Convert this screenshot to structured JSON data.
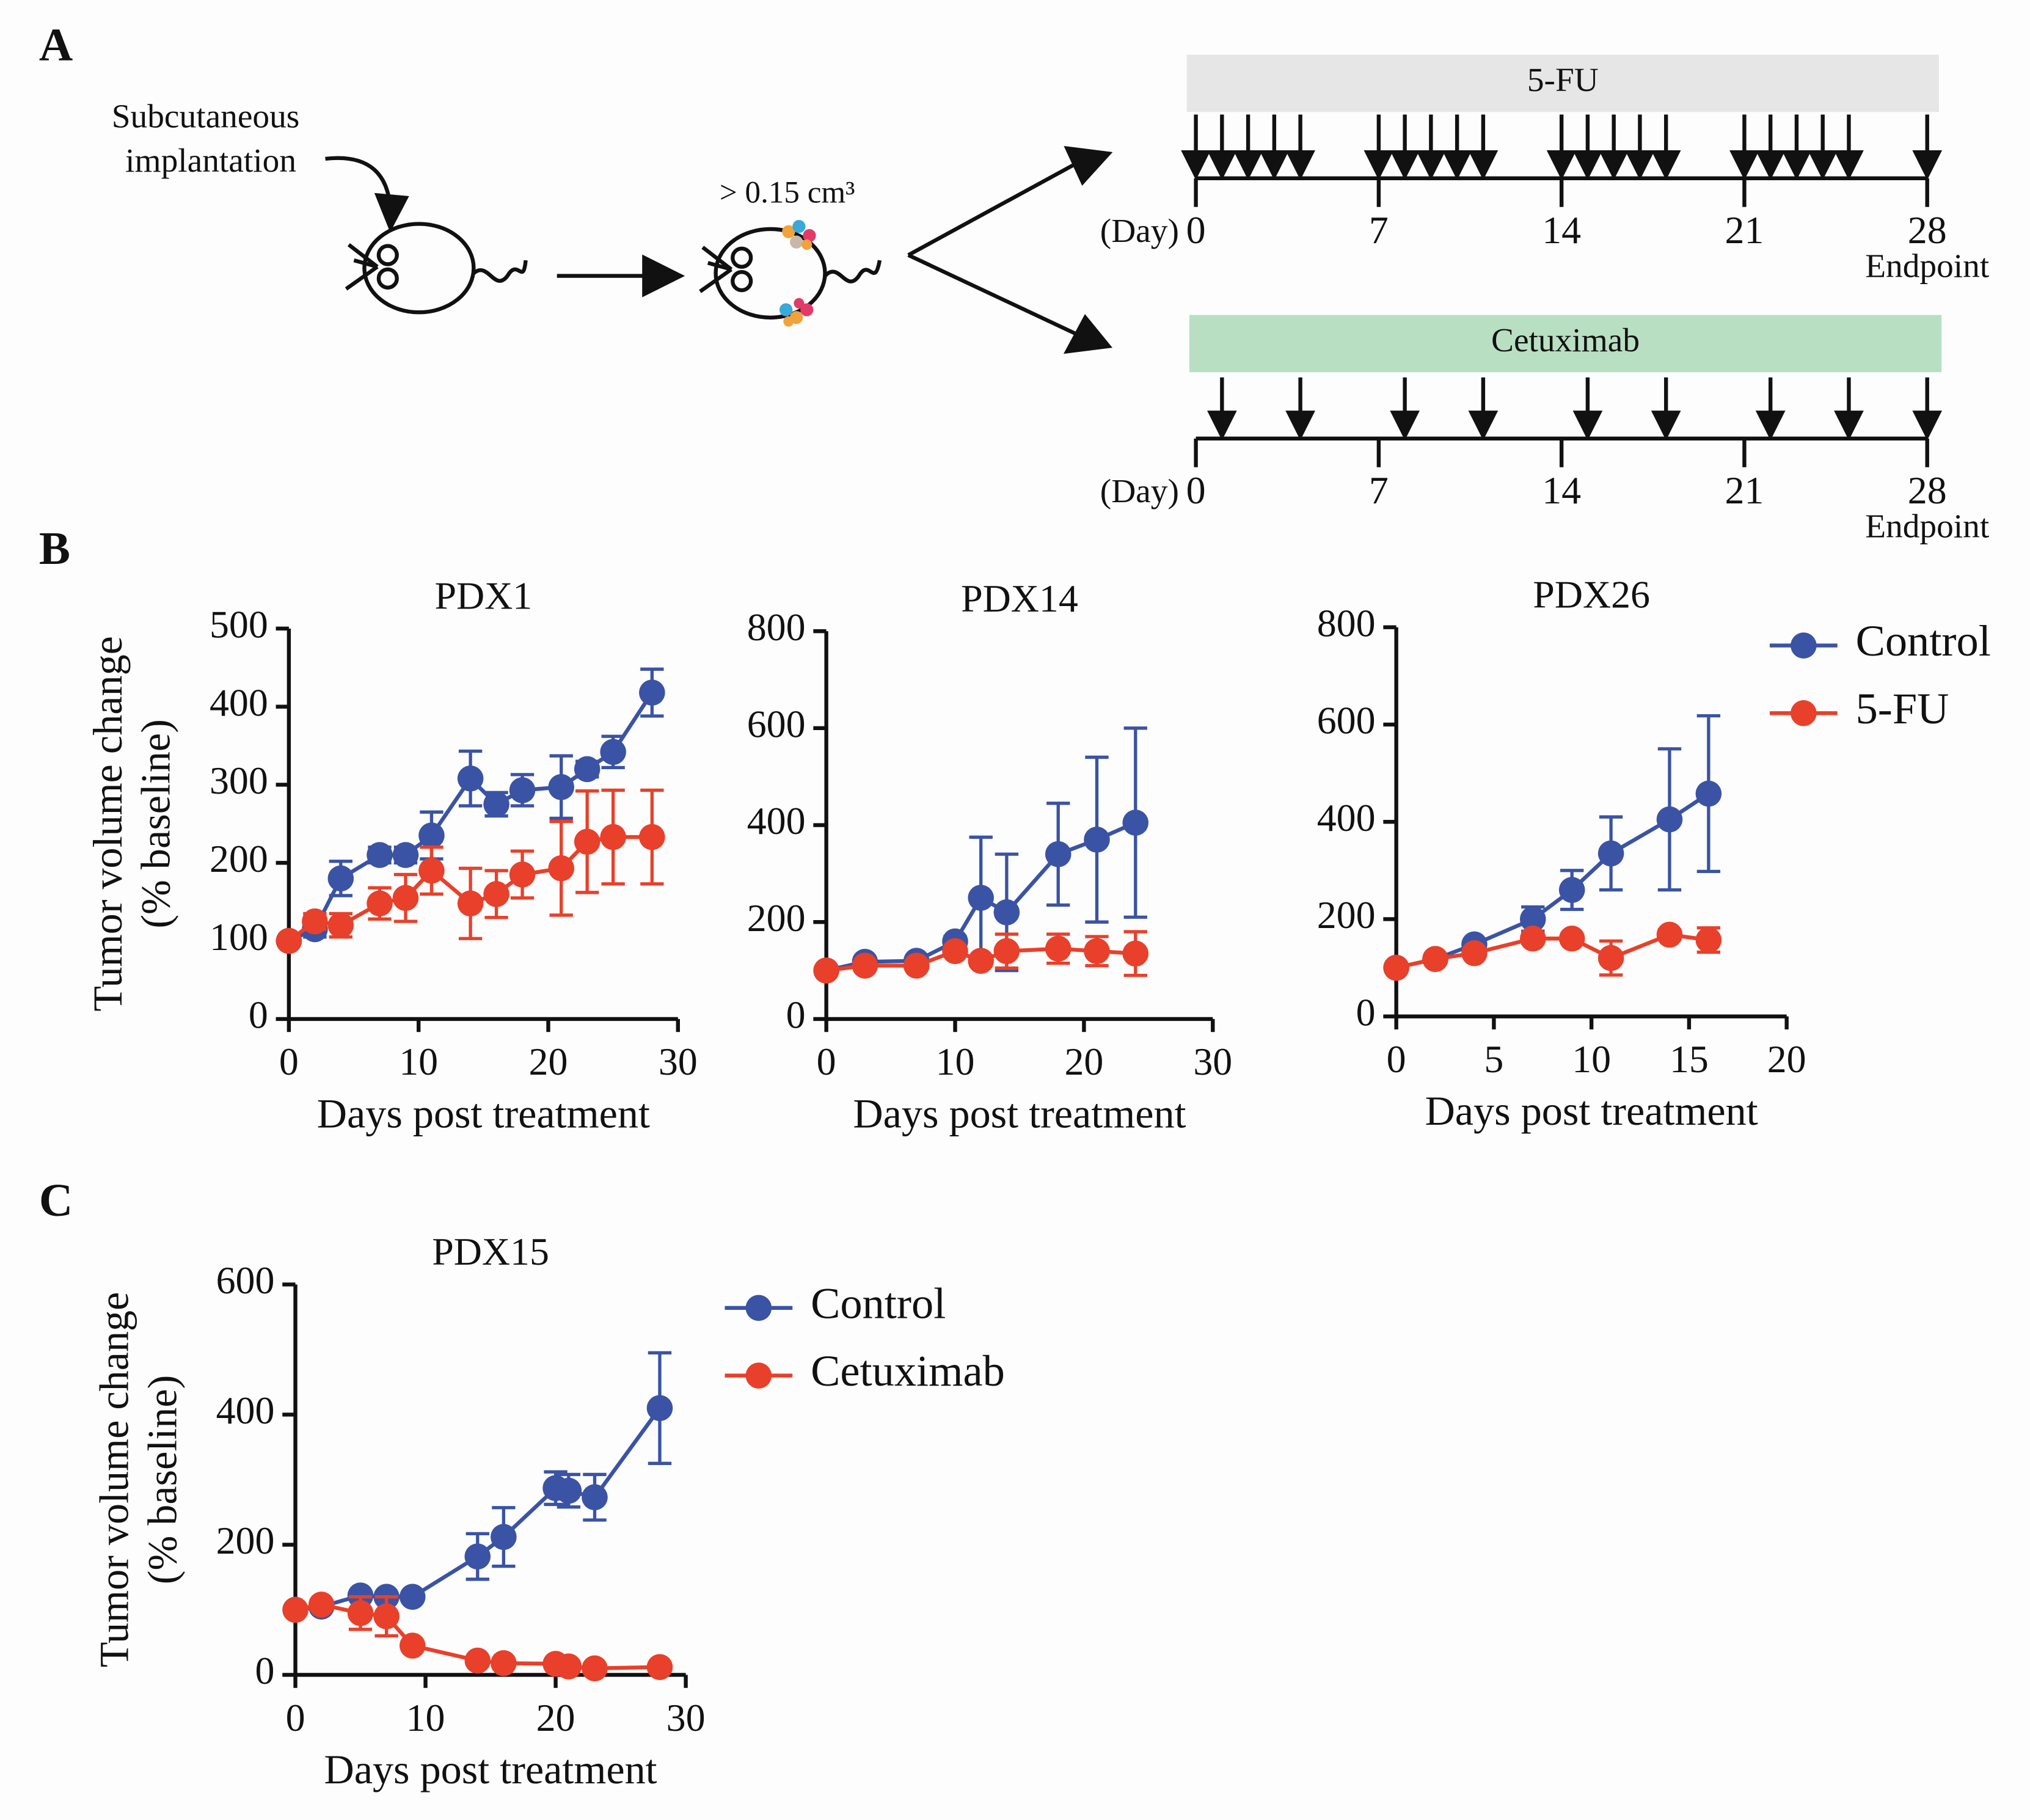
{
  "panel_labels": [
    "A",
    "B",
    "C"
  ],
  "schematic": {
    "implant_label": [
      "Subcutaneous",
      "implantation"
    ],
    "size_label": "> 0.15 cm³",
    "timelines": [
      {
        "label": "5-FU",
        "color": "#e6e6e6",
        "day_label": "(Day)",
        "ticks": [
          0,
          7,
          14,
          21,
          28
        ],
        "end_label": "Endpoint",
        "doses": [
          0,
          1,
          2,
          3,
          4,
          7,
          8,
          9,
          10,
          11,
          14,
          15,
          16,
          17,
          18,
          21,
          22,
          23,
          24,
          25,
          28
        ]
      },
      {
        "label": "Cetuximab",
        "color": "#b9dfc3",
        "day_label": "(Day)",
        "ticks": [
          0,
          7,
          14,
          21,
          28
        ],
        "end_label": "Endpoint",
        "doses": [
          1,
          4,
          8,
          11,
          15,
          18,
          22,
          25,
          28
        ]
      }
    ]
  },
  "chart_data": [
    {
      "type": "line",
      "title": "PDX1",
      "xlabel": "Days post treatment",
      "ylabel": [
        "Tumor volume change",
        "(% baseline)"
      ],
      "x": [
        0,
        2,
        4,
        7,
        9,
        11,
        14,
        16,
        18,
        21,
        23,
        25,
        28
      ],
      "xlim": [
        0,
        30
      ],
      "xticks": [
        0,
        10,
        20,
        30
      ],
      "ylim": [
        0,
        500
      ],
      "yticks": [
        0,
        100,
        200,
        300,
        400,
        500
      ],
      "series": [
        {
          "name": "Control",
          "color": "#3a53a4",
          "values": [
            100,
            115,
            180,
            210,
            210,
            235,
            308,
            275,
            293,
            297,
            320,
            342,
            418
          ],
          "errors": [
            0,
            10,
            22,
            10,
            10,
            30,
            35,
            15,
            20,
            40,
            10,
            20,
            30
          ]
        },
        {
          "name": "5-FU",
          "color": "#e8402a",
          "values": [
            100,
            125,
            120,
            148,
            155,
            190,
            148,
            160,
            185,
            193,
            227,
            233,
            233
          ],
          "errors": [
            0,
            10,
            15,
            20,
            30,
            30,
            45,
            30,
            30,
            60,
            65,
            60,
            60
          ]
        }
      ]
    },
    {
      "type": "line",
      "title": "PDX14",
      "xlabel": "Days post treatment",
      "x": [
        0,
        3,
        7,
        10,
        12,
        14,
        18,
        21,
        24
      ],
      "xlim": [
        0,
        30
      ],
      "xticks": [
        0,
        10,
        20,
        30
      ],
      "ylim": [
        0,
        800
      ],
      "yticks": [
        0,
        200,
        400,
        600,
        800
      ],
      "series": [
        {
          "name": "Control",
          "color": "#3a53a4",
          "values": [
            100,
            118,
            120,
            160,
            250,
            220,
            340,
            370,
            405
          ],
          "errors": [
            0,
            0,
            5,
            10,
            125,
            120,
            105,
            170,
            195
          ]
        },
        {
          "name": "5-FU",
          "color": "#e8402a",
          "values": [
            100,
            110,
            110,
            140,
            120,
            140,
            145,
            140,
            135
          ],
          "errors": [
            0,
            0,
            0,
            10,
            10,
            35,
            30,
            30,
            45
          ]
        }
      ]
    },
    {
      "type": "line",
      "title": "PDX26",
      "xlabel": "Days post treatment",
      "legend": "outside right",
      "x": [
        0,
        2,
        4,
        7,
        9,
        11,
        14,
        16
      ],
      "xlim": [
        0,
        20
      ],
      "xticks": [
        0,
        5,
        10,
        15,
        20
      ],
      "ylim": [
        0,
        800
      ],
      "yticks": [
        0,
        200,
        400,
        600,
        800
      ],
      "series": [
        {
          "name": "Control",
          "color": "#3a53a4",
          "values": [
            100,
            118,
            148,
            200,
            260,
            335,
            405,
            458
          ],
          "errors": [
            0,
            0,
            5,
            25,
            40,
            75,
            145,
            160
          ]
        },
        {
          "name": "5-FU",
          "color": "#e8402a",
          "values": [
            100,
            118,
            130,
            160,
            160,
            120,
            168,
            157
          ],
          "errors": [
            0,
            0,
            0,
            10,
            5,
            35,
            10,
            25
          ]
        }
      ]
    },
    {
      "type": "line",
      "title": "PDX15",
      "xlabel": "Days post treatment",
      "ylabel": [
        "Tumor volume change",
        "(% baseline)"
      ],
      "legend": "outside right",
      "x": [
        0,
        2,
        5,
        7,
        9,
        14,
        16,
        20,
        21,
        23,
        28
      ],
      "xlim": [
        0,
        30
      ],
      "xticks": [
        0,
        10,
        20,
        30
      ],
      "ylim": [
        0,
        600
      ],
      "yticks": [
        0,
        200,
        400,
        600
      ],
      "series": [
        {
          "name": "Control",
          "color": "#3a53a4",
          "values": [
            100,
            105,
            122,
            120,
            120,
            182,
            212,
            287,
            283,
            273,
            410
          ],
          "errors": [
            0,
            0,
            0,
            0,
            0,
            35,
            45,
            25,
            25,
            35,
            85
          ]
        },
        {
          "name": "Cetuximab",
          "color": "#e8402a",
          "values": [
            100,
            108,
            95,
            90,
            45,
            22,
            18,
            17,
            13,
            10,
            12
          ],
          "errors": [
            0,
            0,
            25,
            30,
            5,
            5,
            0,
            5,
            0,
            0,
            5
          ]
        }
      ]
    }
  ]
}
